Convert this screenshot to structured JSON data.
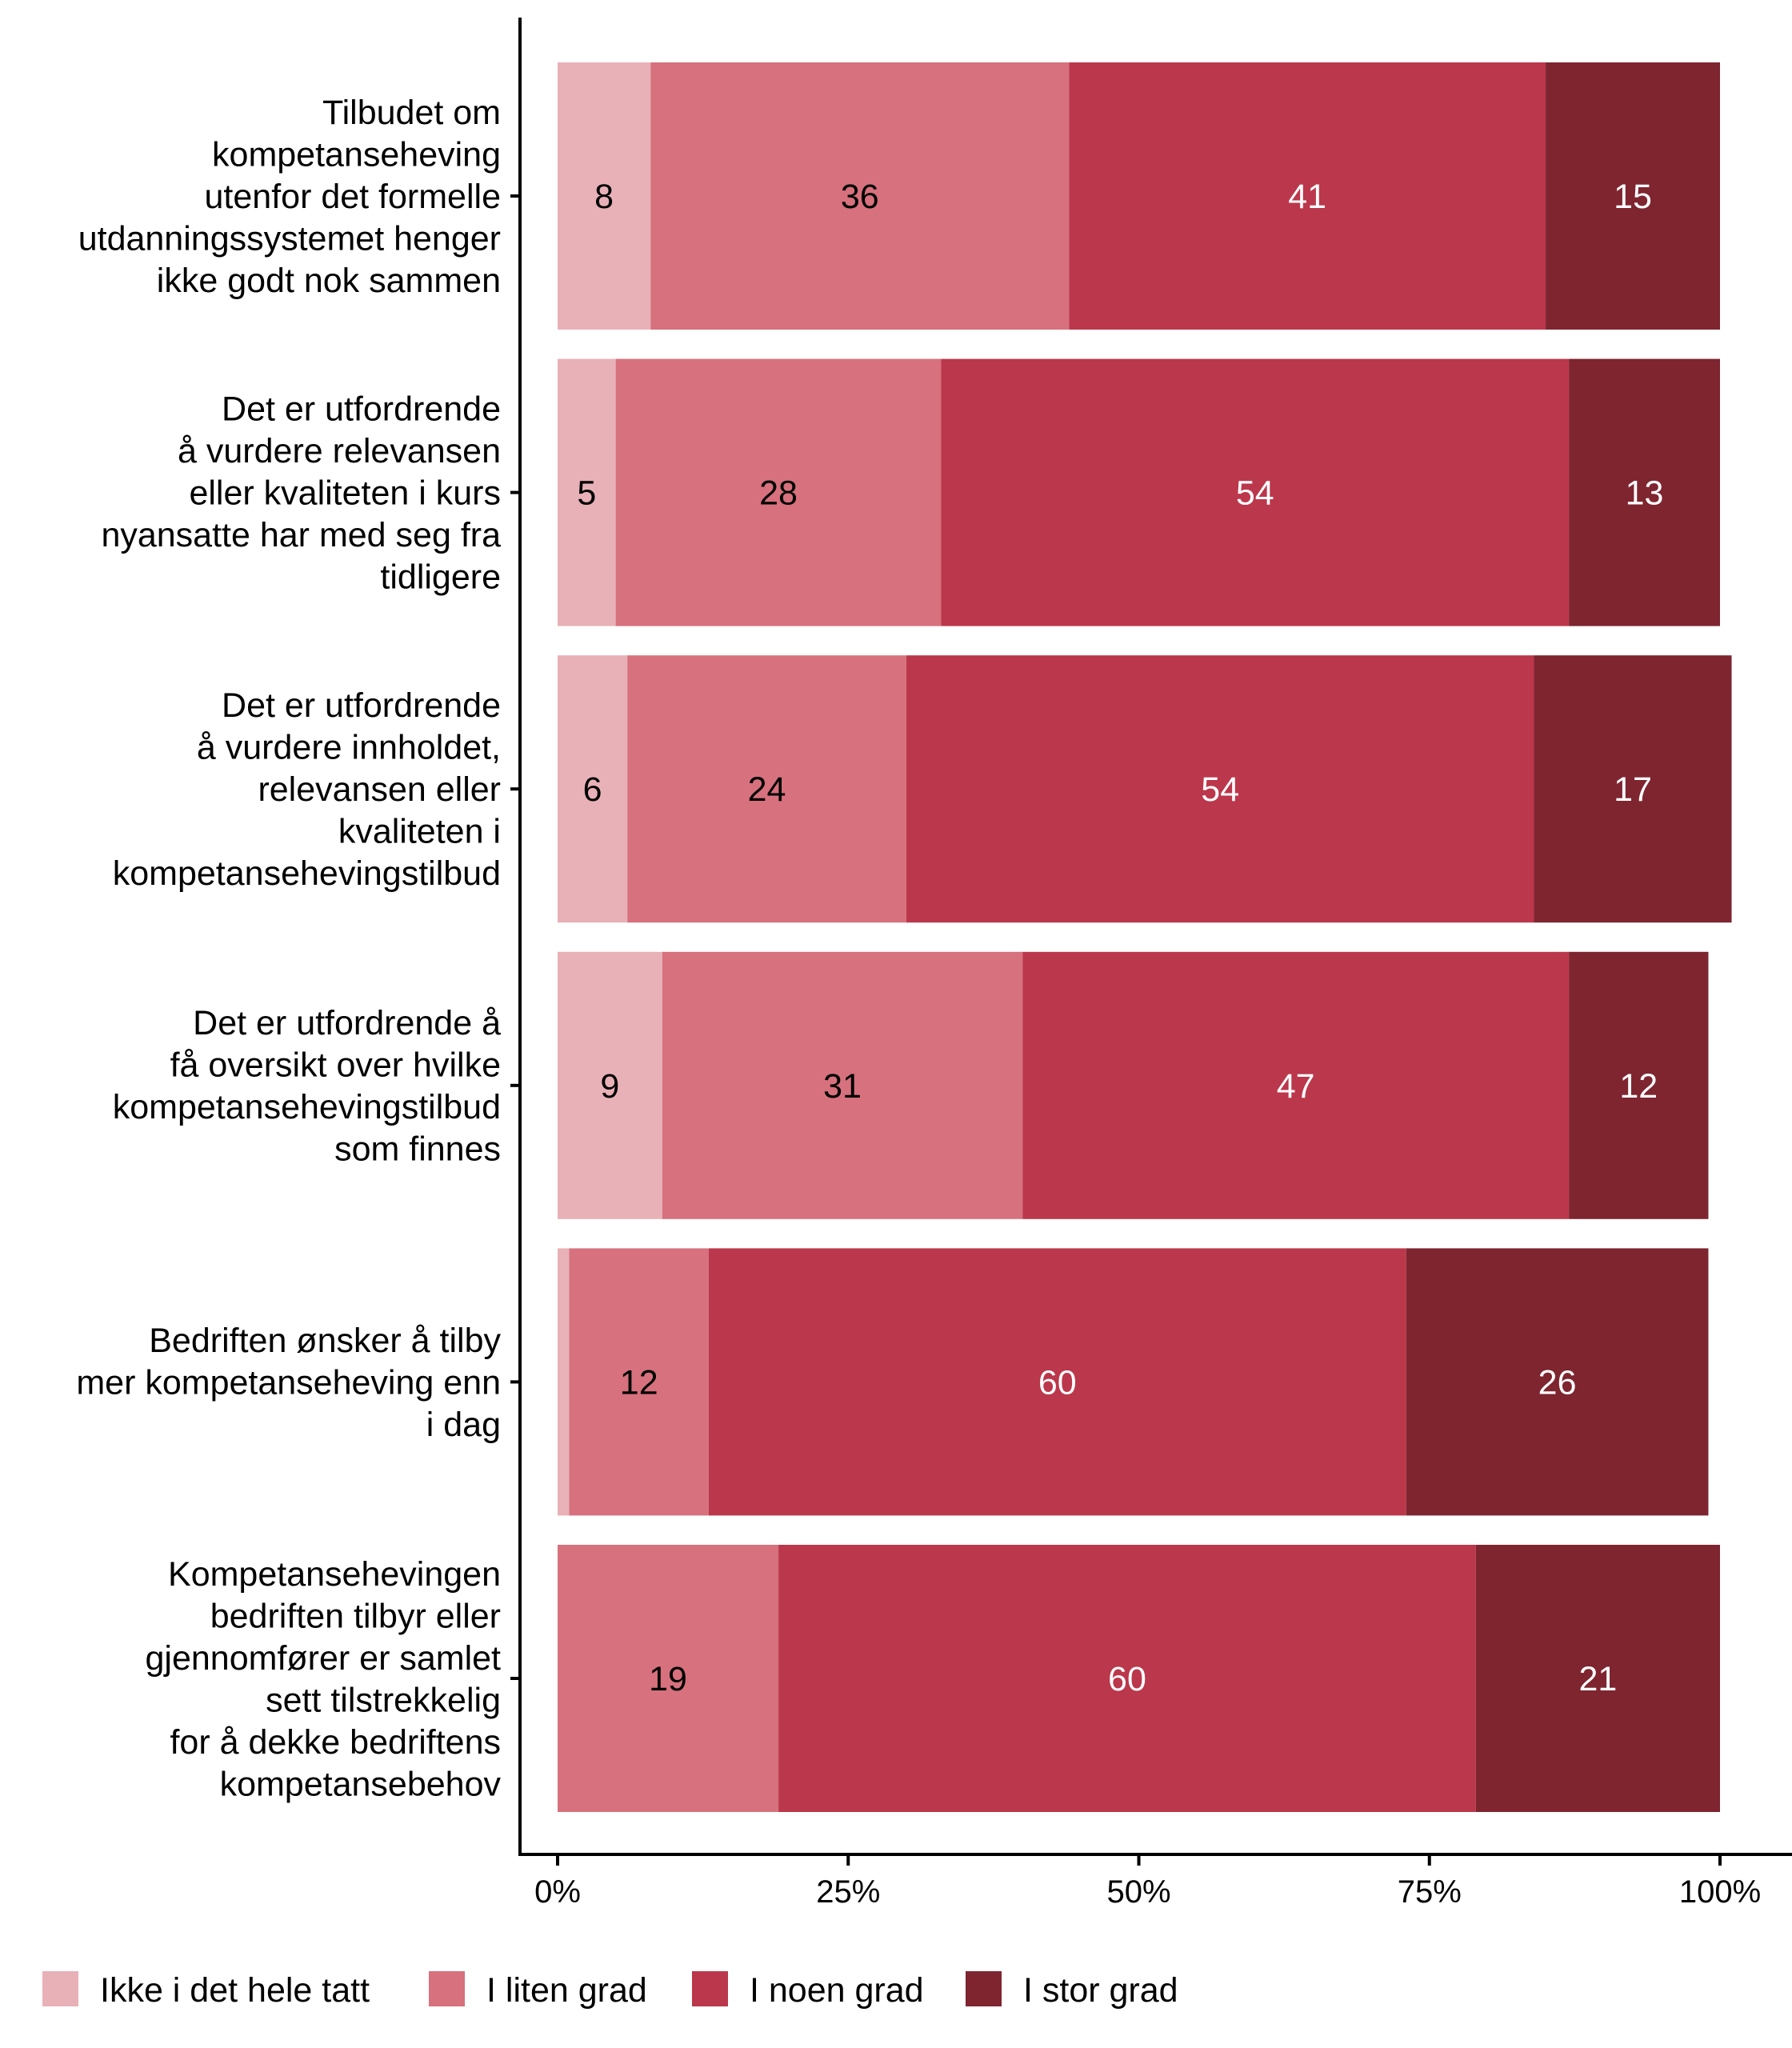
{
  "chart_data": {
    "type": "bar",
    "orientation": "horizontal",
    "stacked": true,
    "title": "",
    "xlabel": "",
    "ylabel": "",
    "xlim": [
      0,
      100
    ],
    "x_ticks": [
      "0%",
      "25%",
      "50%",
      "75%",
      "100%"
    ],
    "x_tick_values": [
      0,
      25,
      50,
      75,
      100
    ],
    "grid": false,
    "legend_position": "bottom",
    "categories": [
      [
        "Tilbudet om",
        "kompetanseheving",
        "utenfor det formelle",
        "utdanningssystemet henger",
        "ikke godt nok sammen"
      ],
      [
        "Det er utfordrende",
        "å vurdere relevansen",
        "eller kvaliteten i kurs",
        "nyansatte har med seg fra",
        "tidligere"
      ],
      [
        "Det er utfordrende",
        "å vurdere innholdet,",
        "relevansen eller",
        "kvaliteten i",
        "kompetansehevingstilbud"
      ],
      [
        "Det er utfordrende å",
        "få oversikt over hvilke",
        "kompetansehevingstilbud",
        "som finnes"
      ],
      [
        "Bedriften ønsker å tilby",
        "mer kompetanseheving enn",
        "i dag"
      ],
      [
        "Kompetansehevingen",
        "bedriften tilbyr eller",
        "gjennomfører er samlet",
        "sett tilstrekkelig",
        "for å dekke bedriftens",
        "kompetansebehov"
      ]
    ],
    "series": [
      {
        "name": "Ikke i det hele tatt",
        "color": "#E8B1B7",
        "label_color": "#000000",
        "values": [
          8,
          5,
          6,
          9,
          1,
          0
        ],
        "labels": [
          "8",
          "5",
          "6",
          "9",
          "",
          ""
        ]
      },
      {
        "name": "I liten grad",
        "color": "#D6717D",
        "label_color": "#000000",
        "values": [
          36,
          28,
          24,
          31,
          12,
          19
        ],
        "labels": [
          "36",
          "28",
          "24",
          "31",
          "12",
          "19"
        ]
      },
      {
        "name": "I noen grad",
        "color": "#BB374B",
        "label_color": "#FFFFFF",
        "values": [
          41,
          54,
          54,
          47,
          60,
          60
        ],
        "labels": [
          "41",
          "54",
          "54",
          "47",
          "60",
          "60"
        ]
      },
      {
        "name": "I stor grad",
        "color": "#7E2530",
        "label_color": "#FFFFFF",
        "values": [
          15,
          13,
          17,
          12,
          26,
          21
        ],
        "labels": [
          "15",
          "13",
          "17",
          "12",
          "26",
          "21"
        ]
      }
    ]
  }
}
